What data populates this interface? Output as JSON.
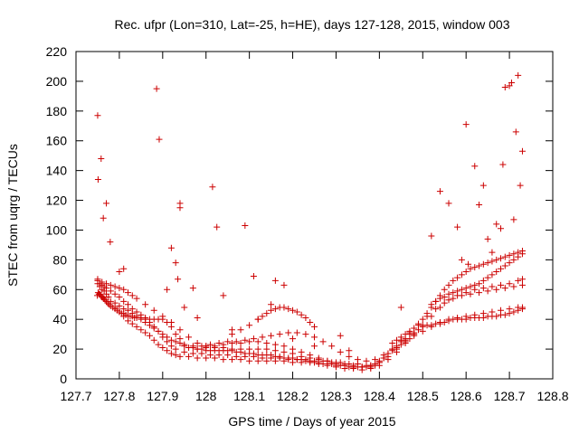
{
  "chart_data": {
    "type": "scatter",
    "title": "Rec. ufpr (Lon=310, Lat=-25, h=HE), days 127-128, 2015, window 003",
    "xlabel": "GPS time / Days of year 2015",
    "ylabel": "STEC from uqrg / TECUs",
    "xlim": [
      127.7,
      128.8
    ],
    "ylim": [
      0,
      220
    ],
    "xticks": [
      127.7,
      127.8,
      127.9,
      128.0,
      128.1,
      128.2,
      128.3,
      128.4,
      128.5,
      128.6,
      128.7,
      128.8
    ],
    "xtick_labels": [
      "127.7",
      "127.8",
      "127.9",
      "128",
      "128.1",
      "128.2",
      "128.3",
      "128.4",
      "128.5",
      "128.6",
      "128.7",
      "128.8"
    ],
    "yticks": [
      0,
      20,
      40,
      60,
      80,
      100,
      120,
      140,
      160,
      180,
      200,
      220
    ],
    "ytick_labels": [
      "0",
      "20",
      "40",
      "60",
      "80",
      "100",
      "120",
      "140",
      "160",
      "180",
      "200",
      "220"
    ],
    "grid": false,
    "marker": "plus",
    "color": "#cc0000",
    "series": [
      {
        "x": [
          127.749,
          127.751,
          127.753,
          127.755,
          127.757,
          127.759,
          127.761,
          127.763,
          127.765,
          127.767,
          127.77,
          127.773,
          127.776,
          127.78,
          127.785,
          127.79,
          127.795,
          127.8,
          127.805,
          127.81,
          127.815,
          127.82,
          127.825,
          127.83,
          127.835,
          127.84,
          127.85,
          127.86,
          127.87,
          127.88,
          127.89,
          127.9,
          127.91,
          127.92,
          127.93,
          127.94,
          127.95,
          127.96,
          127.97,
          127.98,
          127.99,
          128.0,
          128.01,
          128.02,
          128.03,
          128.04,
          128.05,
          128.06,
          128.07,
          128.08,
          128.09,
          128.1,
          128.11,
          128.12,
          128.13,
          128.14,
          128.15,
          128.16,
          128.17,
          128.18,
          128.19,
          128.2,
          128.21,
          128.22,
          128.23,
          128.24,
          128.25,
          128.26,
          128.27,
          128.28,
          128.29,
          128.3,
          128.31,
          128.32,
          128.33,
          128.34,
          128.35,
          128.36,
          128.37,
          128.38,
          128.39,
          128.4,
          128.41,
          128.42,
          128.43,
          128.44,
          128.45,
          128.46,
          128.47,
          128.48,
          128.49,
          128.5,
          128.51,
          128.52,
          128.53,
          128.54,
          128.55,
          128.56,
          128.57,
          128.58,
          128.59,
          128.6,
          128.61,
          128.62,
          128.63,
          128.64,
          128.65,
          128.66,
          128.67,
          128.68,
          128.69,
          128.7,
          128.71,
          128.72,
          128.73
        ],
        "y": [
          56,
          58,
          57,
          57,
          56,
          55,
          55,
          54,
          54,
          53,
          52,
          51,
          50,
          49,
          48,
          47,
          46,
          45,
          44,
          44,
          43,
          42,
          42,
          42,
          41,
          41,
          41,
          40,
          40,
          40,
          40,
          40,
          38,
          35,
          30,
          27,
          22,
          21,
          21,
          20,
          20,
          19,
          19,
          19,
          19,
          19,
          19,
          19,
          18,
          18,
          17,
          17,
          17,
          16,
          16,
          16,
          16,
          15,
          15,
          14,
          14,
          14,
          13,
          13,
          12,
          12,
          11,
          11,
          10,
          10,
          10,
          9,
          9,
          9,
          8,
          8,
          8,
          8,
          8,
          8,
          9,
          11,
          14,
          17,
          19,
          21,
          23,
          25,
          27,
          30,
          33,
          35,
          36,
          36,
          37,
          37,
          38,
          39,
          40,
          40,
          40,
          40,
          41,
          41,
          41,
          41,
          42,
          42,
          42,
          43,
          43,
          44,
          45,
          46,
          47
        ]
      },
      {
        "x": [
          127.75,
          127.755,
          127.76,
          127.765,
          127.77,
          127.775,
          127.78,
          127.79,
          127.8,
          127.81,
          127.82,
          127.83,
          127.84,
          127.85,
          127.86,
          127.87,
          127.88,
          127.89,
          127.9,
          127.91,
          127.92,
          127.93,
          127.94,
          127.96,
          127.98,
          128.0,
          128.02,
          128.04,
          128.06,
          128.08,
          128.1,
          128.12,
          128.14,
          128.16,
          128.18,
          128.2,
          128.22,
          128.24,
          128.26,
          128.28,
          128.3,
          128.32,
          128.34,
          128.36,
          128.38,
          128.4,
          128.42,
          128.44,
          128.46,
          128.48,
          128.5,
          128.52,
          128.54,
          128.56,
          128.58,
          128.6,
          128.62,
          128.64,
          128.66,
          128.68,
          128.7,
          128.72,
          128.73
        ],
        "y": [
          64,
          62,
          60,
          59,
          57,
          55,
          52,
          48,
          45,
          42,
          39,
          37,
          35,
          33,
          31,
          29,
          26,
          23,
          21,
          19,
          17,
          16,
          15,
          15,
          14,
          14,
          14,
          13,
          13,
          13,
          12,
          12,
          12,
          12,
          12,
          11,
          11,
          11,
          10,
          9,
          8,
          7,
          7,
          6,
          7,
          9,
          13,
          18,
          24,
          29,
          32,
          35,
          38,
          40,
          41,
          42,
          43,
          44,
          45,
          46,
          47,
          48,
          48
        ]
      },
      {
        "x": [
          127.75,
          127.755,
          127.76,
          127.765,
          127.77,
          127.78,
          127.79,
          127.8,
          127.81,
          127.82,
          127.83,
          127.84,
          127.85,
          127.86,
          127.87,
          127.88,
          127.89,
          127.9,
          127.91,
          127.92,
          127.93,
          127.95,
          127.97,
          127.99,
          128.01,
          128.03,
          128.05,
          128.07,
          128.09,
          128.11,
          128.13,
          128.15,
          128.17,
          128.19,
          128.21,
          128.23,
          128.25,
          128.27,
          128.29,
          128.31,
          128.33,
          128.35,
          128.37,
          128.39,
          128.41,
          128.43,
          128.45,
          128.47,
          128.49,
          128.51,
          128.53,
          128.55,
          128.57,
          128.59,
          128.61,
          128.63,
          128.65,
          128.67,
          128.69,
          128.71,
          128.73
        ],
        "y": [
          66,
          64,
          63,
          62,
          61,
          59,
          57,
          55,
          52,
          50,
          47,
          45,
          43,
          41,
          38,
          35,
          32,
          28,
          25,
          22,
          20,
          18,
          17,
          17,
          16,
          16,
          16,
          15,
          15,
          15,
          14,
          14,
          14,
          13,
          13,
          13,
          12,
          12,
          11,
          11,
          10,
          10,
          9,
          10,
          14,
          20,
          26,
          31,
          36,
          42,
          47,
          51,
          54,
          56,
          57,
          58,
          59,
          60,
          61,
          62,
          63
        ]
      },
      {
        "x": [
          127.75,
          127.76,
          127.77,
          127.78,
          127.79,
          127.8,
          127.81,
          127.82,
          127.83,
          127.84,
          127.86,
          127.88,
          127.9,
          127.92,
          127.94,
          127.96,
          127.98,
          128.0,
          128.02,
          128.04,
          128.06,
          128.08,
          128.1,
          128.12,
          128.14,
          128.16,
          128.18,
          128.2,
          128.22,
          128.24,
          128.26,
          128.28,
          128.3,
          128.32,
          128.34,
          128.36,
          128.38,
          128.4,
          128.42,
          128.44,
          128.46,
          128.48,
          128.5,
          128.52,
          128.54,
          128.56,
          128.58,
          128.6,
          128.62,
          128.64,
          128.66,
          128.68,
          128.7,
          128.72,
          128.73
        ],
        "y": [
          67,
          65,
          64,
          63,
          62,
          61,
          60,
          58,
          56,
          54,
          50,
          46,
          42,
          38,
          33,
          28,
          24,
          22,
          21,
          21,
          20,
          20,
          20,
          20,
          20,
          19,
          18,
          17,
          15,
          14,
          13,
          12,
          11,
          10,
          9,
          8,
          9,
          12,
          17,
          22,
          27,
          31,
          36,
          42,
          48,
          53,
          56,
          58,
          60,
          61,
          62,
          63,
          64,
          66,
          67
        ]
      },
      {
        "x": [
          127.79,
          127.8,
          127.81,
          127.82,
          127.83,
          127.84,
          127.85,
          127.86,
          127.87,
          127.88,
          127.89,
          127.9,
          127.91,
          127.92,
          127.93,
          127.94,
          127.95,
          127.97,
          127.99,
          128.01,
          128.03,
          128.05,
          128.07,
          128.09,
          128.11,
          128.13,
          128.15,
          128.17,
          128.19,
          128.21,
          128.23,
          128.25,
          128.27,
          128.29,
          128.31,
          128.33,
          128.35,
          128.37,
          128.39,
          128.41,
          128.43,
          128.45,
          128.47
        ],
        "y": [
          51,
          49,
          47,
          46,
          44,
          42,
          40,
          38,
          36,
          34,
          32,
          30,
          28,
          26,
          25,
          24,
          23,
          22,
          22,
          23,
          24,
          25,
          25,
          26,
          27,
          28,
          29,
          30,
          31,
          31,
          30,
          28,
          25,
          22,
          18,
          15,
          13,
          12,
          13,
          16,
          20,
          25,
          30
        ]
      },
      {
        "x": [
          127.98,
          128.0,
          128.02,
          128.04,
          128.06,
          128.08,
          128.1,
          128.12,
          128.14,
          128.16,
          128.18,
          128.2,
          128.22,
          128.24,
          128.26,
          128.28,
          128.3,
          128.32,
          128.34,
          128.36,
          128.38,
          128.4,
          128.42,
          128.44,
          128.46
        ],
        "y": [
          20,
          21,
          22,
          23,
          24,
          24,
          25,
          25,
          24,
          23,
          22,
          20,
          18,
          16,
          14,
          12,
          10,
          9,
          8,
          8,
          9,
          11,
          15,
          20,
          26
        ]
      },
      {
        "x": [
          128.06,
          128.08,
          128.1,
          128.12,
          128.13,
          128.14,
          128.15,
          128.16,
          128.17,
          128.18,
          128.19,
          128.2,
          128.21,
          128.22,
          128.23,
          128.24,
          128.25
        ],
        "y": [
          30,
          33,
          36,
          40,
          42,
          44,
          46,
          47,
          48,
          48,
          47,
          46,
          45,
          43,
          41,
          38,
          35
        ]
      },
      {
        "x": [
          128.43,
          128.44,
          128.45,
          128.46,
          128.47,
          128.48,
          128.49,
          128.5,
          128.51,
          128.52,
          128.53,
          128.54,
          128.55,
          128.56,
          128.57,
          128.58,
          128.59,
          128.6,
          128.61,
          128.62,
          128.63,
          128.64,
          128.65,
          128.66,
          128.67,
          128.68,
          128.69,
          128.7,
          128.71,
          128.72,
          128.73
        ],
        "y": [
          24,
          26,
          28,
          30,
          32,
          34,
          37,
          40,
          44,
          48,
          52,
          56,
          60,
          63,
          66,
          68,
          70,
          72,
          74,
          75,
          76,
          77,
          78,
          79,
          80,
          81,
          82,
          83,
          84,
          85,
          86
        ]
      },
      {
        "x": [
          128.52,
          128.53,
          128.54,
          128.55,
          128.56,
          128.57,
          128.58,
          128.59,
          128.6,
          128.61,
          128.62,
          128.63,
          128.64,
          128.65,
          128.66,
          128.67,
          128.68,
          128.69,
          128.7,
          128.71,
          128.72,
          128.73
        ],
        "y": [
          50,
          52,
          54,
          55,
          57,
          58,
          59,
          60,
          61,
          62,
          63,
          64,
          66,
          68,
          70,
          72,
          74,
          76,
          78,
          80,
          82,
          84
        ]
      },
      {
        "x": [
          127.75,
          127.751,
          127.758,
          127.763,
          127.77,
          127.779,
          127.8,
          127.81,
          127.886,
          127.892,
          127.91,
          127.92,
          127.93,
          127.935,
          127.94,
          127.94,
          127.95,
          127.97,
          127.98,
          128.0,
          128.015,
          128.025,
          128.04,
          128.06,
          128.09,
          128.11,
          128.12,
          128.15,
          128.16,
          128.18,
          128.2,
          128.25,
          128.31,
          128.33,
          128.45,
          128.52,
          128.54,
          128.56,
          128.58,
          128.59,
          128.6,
          128.605,
          128.62,
          128.63,
          128.64,
          128.65,
          128.66,
          128.67,
          128.68,
          128.685,
          128.69,
          128.7,
          128.705,
          128.71,
          128.715,
          128.72,
          128.725,
          128.73
        ],
        "y": [
          177,
          134,
          148,
          108,
          118,
          92,
          72,
          74,
          195,
          161,
          60,
          88,
          78,
          67,
          118,
          115,
          48,
          61,
          41,
          22,
          129,
          102,
          56,
          33,
          103,
          69,
          40,
          50,
          66,
          63,
          27,
          22,
          29,
          19,
          48,
          96,
          126,
          118,
          102,
          80,
          171,
          77,
          143,
          117,
          130,
          94,
          85,
          104,
          101,
          144,
          196,
          197,
          199,
          107,
          166,
          204,
          130,
          153
        ]
      }
    ]
  }
}
